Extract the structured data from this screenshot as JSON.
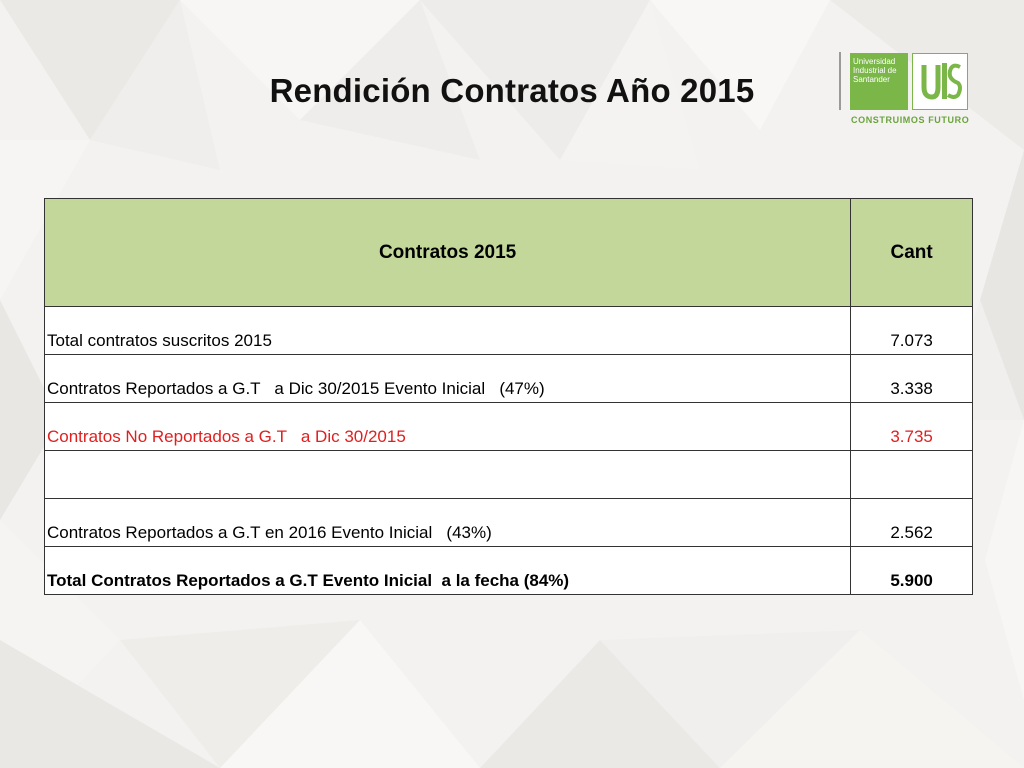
{
  "slide": {
    "title": "Rendición Contratos Año 2015"
  },
  "logo": {
    "line1": "Universidad",
    "line2": "Industrial de",
    "line3": "Santander",
    "mark": "UIS",
    "tagline": "CONSTRUIMOS FUTURO",
    "brand_color": "#7ab648"
  },
  "table": {
    "headers": [
      "Contratos 2015",
      "Cant"
    ],
    "header_color": "#c4d79b",
    "rows": [
      {
        "label": "Total contratos suscritos 2015",
        "value": "7.073",
        "style": "normal"
      },
      {
        "label": "Contratos Reportados a G.T   a Dic 30/2015 Evento Inicial   (47%)",
        "value": "3.338",
        "style": "normal"
      },
      {
        "label": "Contratos No Reportados a G.T   a Dic 30/2015",
        "value": "3.735",
        "style": "red"
      },
      {
        "label": "",
        "value": "",
        "style": "normal"
      },
      {
        "label": "Contratos Reportados a G.T en 2016 Evento Inicial   (43%)",
        "value": "2.562",
        "style": "normal"
      },
      {
        "label": "Total Contratos Reportados a G.T Evento Inicial  a la fecha (84%)",
        "value": "5.900",
        "style": "bold"
      }
    ],
    "highlight_color": "#e02020"
  }
}
